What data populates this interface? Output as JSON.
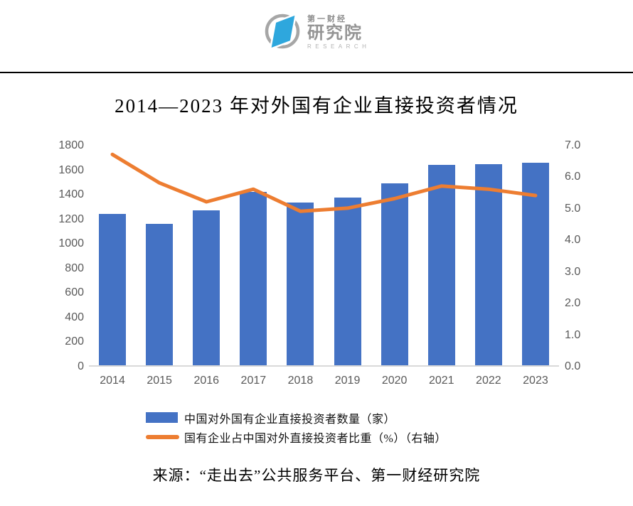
{
  "logo": {
    "line1": "第一财经",
    "line2": "研究院",
    "line3": "RESEARCH"
  },
  "title": "2014—2023 年对外国有企业直接投资者情况",
  "source": "来源：“走出去”公共服务平台、第一财经研究院",
  "colors": {
    "bar": "#4472C4",
    "line": "#ED7D31",
    "axis_label": "#595959",
    "axis_line": "#D9D9D9",
    "header_rule": "#000000",
    "logo_blue": "#2EA7DD",
    "logo_gray": "#9B9B9B"
  },
  "legend": {
    "items": [
      {
        "swatch": "bar-swatch",
        "label": "中国对外国有企业直接投资者数量（家）"
      },
      {
        "swatch": "line-swatch",
        "label": "国有企业占中国对外直接投资者比重（%）（右轴）"
      }
    ]
  },
  "chart_data": {
    "type": "combo",
    "categories": [
      "2014",
      "2015",
      "2016",
      "2017",
      "2018",
      "2019",
      "2020",
      "2021",
      "2022",
      "2023"
    ],
    "series": [
      {
        "name": "中国对外国有企业直接投资者数量（家）",
        "kind": "bar",
        "axis": "left",
        "color": "#4472C4",
        "values": [
          1238,
          1160,
          1268,
          1418,
          1330,
          1372,
          1488,
          1638,
          1642,
          1654
        ]
      },
      {
        "name": "国有企业占中国对外直接投资者比重（%）（右轴）",
        "kind": "line",
        "axis": "right",
        "color": "#ED7D31",
        "values": [
          6.7,
          5.8,
          5.2,
          5.6,
          4.9,
          5.0,
          5.3,
          5.7,
          5.6,
          5.4
        ]
      }
    ],
    "left_axis": {
      "min": 0,
      "max": 1800,
      "step": 200,
      "decimals": 0
    },
    "right_axis": {
      "min": 0,
      "max": 7,
      "step": 1,
      "decimals": 1
    },
    "grid": false,
    "legend_position": "bottom",
    "title": "2014—2023 年对外国有企业直接投资者情况"
  }
}
